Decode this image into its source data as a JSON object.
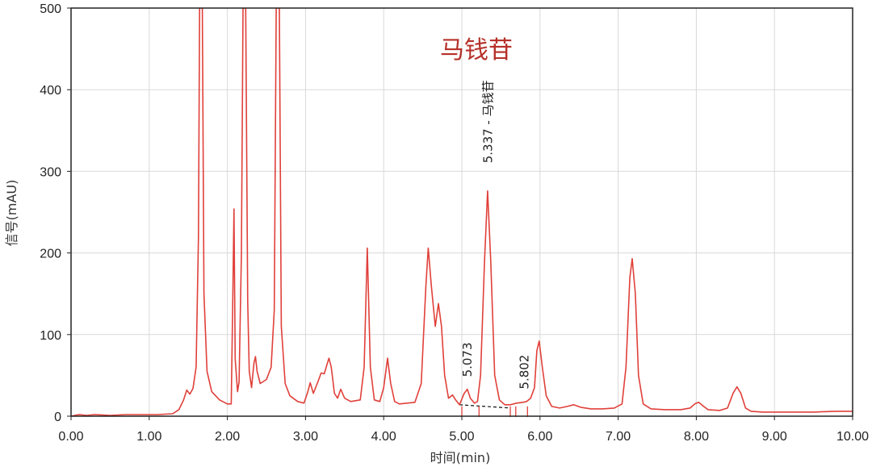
{
  "colors": {
    "signal": "#e0403a",
    "title": "#b5312a",
    "grid": "#d9d9d9",
    "axis": "#222222",
    "baseline_segment": "#111111"
  },
  "chart_data": {
    "type": "line",
    "title": "马钱苷",
    "xlabel": "时间(min)",
    "ylabel": "信号(mAU)",
    "xlim": [
      0,
      10
    ],
    "ylim": [
      0,
      500
    ],
    "grid": true,
    "legend": "none",
    "x_ticks": [
      "0.00",
      "1.00",
      "2.00",
      "3.00",
      "4.00",
      "5.00",
      "6.00",
      "7.00",
      "8.00",
      "9.00",
      "10.00"
    ],
    "y_ticks": [
      "0",
      "100",
      "200",
      "300",
      "400",
      "500"
    ],
    "series": [
      {
        "color": "#e0403a",
        "points": [
          [
            0.0,
            0
          ],
          [
            0.05,
            1
          ],
          [
            0.1,
            2
          ],
          [
            0.2,
            1
          ],
          [
            0.3,
            2
          ],
          [
            0.5,
            1
          ],
          [
            0.7,
            2
          ],
          [
            0.9,
            2
          ],
          [
            1.1,
            2
          ],
          [
            1.3,
            3
          ],
          [
            1.38,
            8
          ],
          [
            1.44,
            20
          ],
          [
            1.48,
            32
          ],
          [
            1.52,
            27
          ],
          [
            1.56,
            34
          ],
          [
            1.6,
            60
          ],
          [
            1.63,
            220
          ],
          [
            1.645,
            500
          ],
          [
            1.68,
            500
          ],
          [
            1.7,
            150
          ],
          [
            1.74,
            55
          ],
          [
            1.8,
            30
          ],
          [
            1.9,
            20
          ],
          [
            2.0,
            15
          ],
          [
            2.05,
            15
          ],
          [
            2.07,
            150
          ],
          [
            2.085,
            254
          ],
          [
            2.1,
            70
          ],
          [
            2.13,
            30
          ],
          [
            2.15,
            42
          ],
          [
            2.18,
            200
          ],
          [
            2.2,
            500
          ],
          [
            2.235,
            500
          ],
          [
            2.26,
            140
          ],
          [
            2.28,
            55
          ],
          [
            2.31,
            35
          ],
          [
            2.34,
            65
          ],
          [
            2.36,
            73
          ],
          [
            2.38,
            55
          ],
          [
            2.42,
            40
          ],
          [
            2.5,
            45
          ],
          [
            2.56,
            60
          ],
          [
            2.6,
            130
          ],
          [
            2.625,
            500
          ],
          [
            2.665,
            500
          ],
          [
            2.69,
            110
          ],
          [
            2.74,
            40
          ],
          [
            2.8,
            25
          ],
          [
            2.9,
            18
          ],
          [
            2.98,
            16
          ],
          [
            3.03,
            30
          ],
          [
            3.06,
            41
          ],
          [
            3.1,
            28
          ],
          [
            3.15,
            40
          ],
          [
            3.2,
            53
          ],
          [
            3.24,
            52
          ],
          [
            3.28,
            65
          ],
          [
            3.3,
            71
          ],
          [
            3.33,
            60
          ],
          [
            3.37,
            28
          ],
          [
            3.41,
            22
          ],
          [
            3.45,
            33
          ],
          [
            3.5,
            22
          ],
          [
            3.58,
            18
          ],
          [
            3.7,
            20
          ],
          [
            3.75,
            60
          ],
          [
            3.79,
            206
          ],
          [
            3.83,
            60
          ],
          [
            3.88,
            20
          ],
          [
            3.95,
            18
          ],
          [
            4.0,
            35
          ],
          [
            4.05,
            71
          ],
          [
            4.09,
            40
          ],
          [
            4.14,
            18
          ],
          [
            4.2,
            15
          ],
          [
            4.3,
            16
          ],
          [
            4.4,
            17
          ],
          [
            4.48,
            40
          ],
          [
            4.54,
            160
          ],
          [
            4.57,
            206
          ],
          [
            4.61,
            160
          ],
          [
            4.66,
            110
          ],
          [
            4.7,
            138
          ],
          [
            4.74,
            110
          ],
          [
            4.78,
            50
          ],
          [
            4.83,
            22
          ],
          [
            4.88,
            26
          ],
          [
            4.92,
            20
          ],
          [
            4.97,
            14
          ],
          [
            5.03,
            28
          ],
          [
            5.07,
            33
          ],
          [
            5.11,
            22
          ],
          [
            5.16,
            16
          ],
          [
            5.2,
            18
          ],
          [
            5.24,
            50
          ],
          [
            5.29,
            190
          ],
          [
            5.33,
            276
          ],
          [
            5.37,
            190
          ],
          [
            5.42,
            50
          ],
          [
            5.48,
            20
          ],
          [
            5.55,
            14
          ],
          [
            5.62,
            14
          ],
          [
            5.7,
            16
          ],
          [
            5.78,
            17
          ],
          [
            5.83,
            18
          ],
          [
            5.88,
            22
          ],
          [
            5.93,
            35
          ],
          [
            5.96,
            80
          ],
          [
            5.99,
            92
          ],
          [
            6.03,
            60
          ],
          [
            6.08,
            25
          ],
          [
            6.15,
            12
          ],
          [
            6.25,
            10
          ],
          [
            6.35,
            12
          ],
          [
            6.43,
            14
          ],
          [
            6.52,
            11
          ],
          [
            6.65,
            9
          ],
          [
            6.8,
            9
          ],
          [
            6.95,
            10
          ],
          [
            7.05,
            15
          ],
          [
            7.1,
            60
          ],
          [
            7.15,
            170
          ],
          [
            7.18,
            193
          ],
          [
            7.22,
            150
          ],
          [
            7.26,
            50
          ],
          [
            7.32,
            15
          ],
          [
            7.42,
            9
          ],
          [
            7.6,
            8
          ],
          [
            7.8,
            8
          ],
          [
            7.92,
            10
          ],
          [
            7.98,
            15
          ],
          [
            8.03,
            17
          ],
          [
            8.08,
            13
          ],
          [
            8.15,
            8
          ],
          [
            8.3,
            7
          ],
          [
            8.4,
            10
          ],
          [
            8.47,
            28
          ],
          [
            8.52,
            36
          ],
          [
            8.57,
            28
          ],
          [
            8.63,
            10
          ],
          [
            8.7,
            6
          ],
          [
            8.85,
            5
          ],
          [
            9.0,
            5
          ],
          [
            9.3,
            5
          ],
          [
            9.5,
            5
          ],
          [
            9.8,
            6
          ],
          [
            10.0,
            6
          ]
        ]
      }
    ],
    "annotations": [
      {
        "text": "5.337 - 马钱苷",
        "x": 5.337,
        "y": 310
      },
      {
        "text": "5.073",
        "x": 5.073,
        "y": 48
      },
      {
        "text": "5.802",
        "x": 5.802,
        "y": 33
      }
    ],
    "integration_baseline": [
      [
        4.97,
        14
      ],
      [
        5.62,
        10
      ]
    ],
    "peak_marks": [
      5.0,
      5.22,
      5.62,
      5.69,
      5.84
    ]
  }
}
